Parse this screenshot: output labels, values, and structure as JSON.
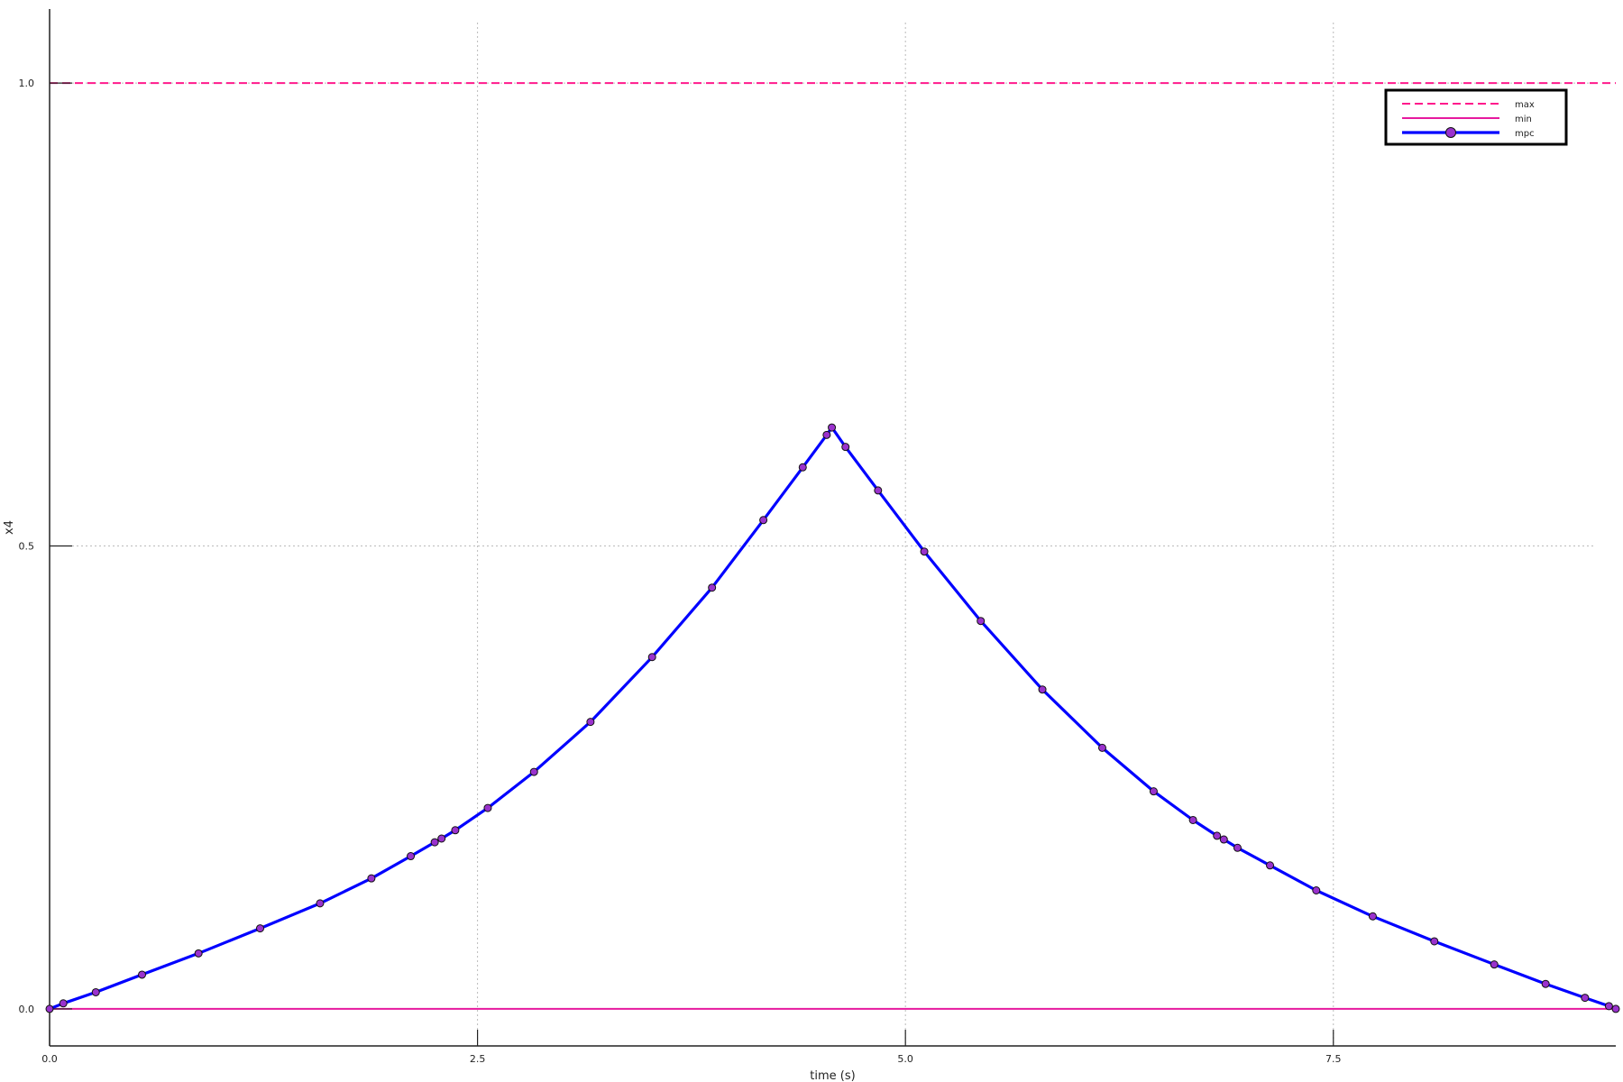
{
  "chart_data": {
    "type": "line",
    "title": "",
    "xlabel": "time (s)",
    "ylabel": "x4",
    "xlim": [
      0,
      9.15
    ],
    "ylim": [
      -0.04,
      1.08
    ],
    "xticks": [
      0.0,
      2.5,
      5.0,
      7.5
    ],
    "xtick_labels": [
      "0.0",
      "2.5",
      "5.0",
      "7.5"
    ],
    "yticks": [
      0.0,
      0.5,
      1.0
    ],
    "ytick_labels": [
      "0.0",
      "0.5",
      "1.0"
    ],
    "grid": true,
    "legend_position": "top-right",
    "series": [
      {
        "name": "max",
        "style": "dashed",
        "color": "#ff1a8c",
        "x": [
          0,
          9.15
        ],
        "y": [
          1.0,
          1.0
        ]
      },
      {
        "name": "min",
        "style": "solid",
        "color": "#e6199e",
        "x": [
          0,
          9.15
        ],
        "y": [
          0.0,
          0.0
        ]
      },
      {
        "name": "mpc",
        "style": "solid-markers",
        "color": "#0000ff",
        "marker_color": "#9a32cd",
        "x": [
          0.0,
          0.08,
          0.27,
          0.54,
          0.87,
          1.23,
          1.58,
          1.88,
          2.11,
          2.25,
          2.29,
          2.37,
          2.56,
          2.83,
          3.16,
          3.52,
          3.87,
          4.17,
          4.4,
          4.54,
          4.57,
          4.65,
          4.84,
          5.11,
          5.44,
          5.8,
          6.15,
          6.45,
          6.68,
          6.82,
          6.86,
          6.94,
          7.13,
          7.4,
          7.73,
          8.09,
          8.44,
          8.74,
          8.97,
          9.11,
          9.15
        ],
        "y": [
          0.0,
          0.006,
          0.018,
          0.037,
          0.06,
          0.087,
          0.114,
          0.141,
          0.165,
          0.18,
          0.184,
          0.193,
          0.217,
          0.256,
          0.31,
          0.38,
          0.455,
          0.528,
          0.585,
          0.62,
          0.628,
          0.607,
          0.56,
          0.494,
          0.419,
          0.345,
          0.282,
          0.235,
          0.204,
          0.187,
          0.183,
          0.174,
          0.155,
          0.128,
          0.1,
          0.073,
          0.048,
          0.027,
          0.012,
          0.003,
          0.0
        ]
      }
    ]
  }
}
